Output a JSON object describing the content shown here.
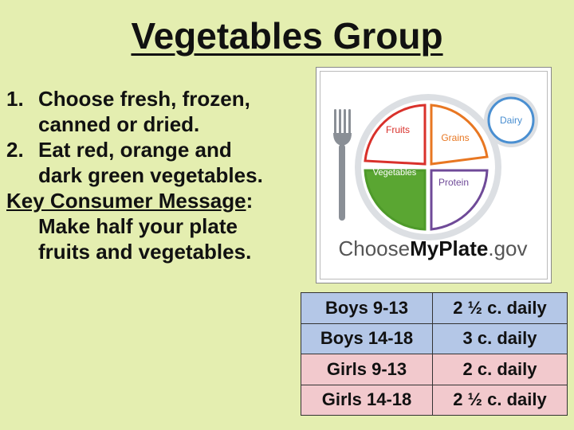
{
  "title": "Vegetables Group",
  "points": [
    {
      "num": "1.",
      "line1": "Choose fresh, frozen,",
      "line2": "canned or dried."
    },
    {
      "num": "2.",
      "line1": "Eat red, orange and",
      "line2": "dark green vegetables."
    }
  ],
  "key_message": {
    "label": "Key Consumer Message",
    "colon": ":",
    "line1": "Make half your plate",
    "line2": "fruits and vegetables."
  },
  "plate": {
    "fruits": "Fruits",
    "grains": "Grains",
    "vegetables": "Vegetables",
    "protein": "Protein",
    "dairy": "Dairy",
    "logo_choose": "Choose",
    "logo_myplate": "MyPlate",
    "logo_gov": ".gov",
    "colors": {
      "fruits": "#d9312b",
      "grains": "#e87722",
      "vegetables": "#5aa632",
      "protein": "#6f4a98",
      "dairy": "#4a8fd1"
    }
  },
  "table": {
    "rows": [
      {
        "group": "Boys 9-13",
        "amount": "2 ½ c. daily",
        "color": "#b4c7e7"
      },
      {
        "group": "Boys 14-18",
        "amount": "3 c. daily",
        "color": "#b4c7e7"
      },
      {
        "group": "Girls 9-13",
        "amount": "2 c. daily",
        "color": "#f2c9cd"
      },
      {
        "group": "Girls 14-18",
        "amount": "2 ½ c. daily",
        "color": "#f2c9cd"
      }
    ]
  }
}
